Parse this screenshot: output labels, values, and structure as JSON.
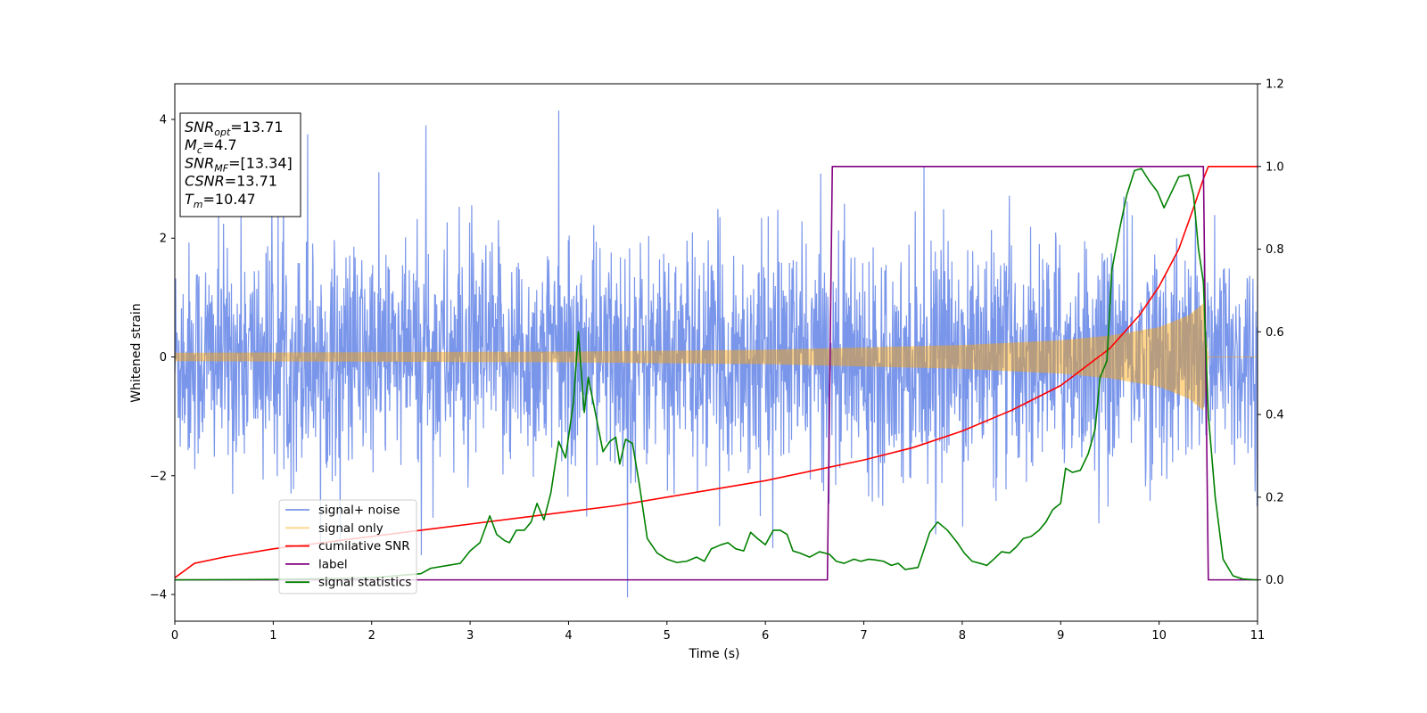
{
  "chart_data": {
    "type": "line",
    "xlabel": "Time (s)",
    "ylabel": "Whitened strain",
    "xlim": [
      0,
      11
    ],
    "ylim_left": [
      -4.45,
      4.6
    ],
    "ylim_right": [
      -0.1,
      1.2
    ],
    "x_ticks": [
      "0",
      "1",
      "2",
      "3",
      "4",
      "5",
      "6",
      "7",
      "8",
      "9",
      "10",
      "11"
    ],
    "y_left_ticks": [
      {
        "value": -4,
        "label": "−4"
      },
      {
        "value": -2,
        "label": "−2"
      },
      {
        "value": 0,
        "label": "0"
      },
      {
        "value": 2,
        "label": "2"
      },
      {
        "value": 4,
        "label": "4"
      }
    ],
    "y_right_ticks": [
      "0.0",
      "0.2",
      "0.4",
      "0.6",
      "0.8",
      "1.0",
      "1.2"
    ],
    "legend_position": "lower-left",
    "grid": false,
    "info_box": {
      "lines": [
        {
          "sym": "SNR",
          "sub": "opt",
          "value": "=13.71"
        },
        {
          "sym": "M",
          "sub": "c",
          "value": "=4.7"
        },
        {
          "sym": "SNR",
          "sub": "MF",
          "value": "=[13.34]"
        },
        {
          "sym": "CSNR",
          "sub": "",
          "value": "=13.71"
        },
        {
          "sym": "T",
          "sub": "m",
          "value": "=10.47"
        }
      ]
    },
    "series": [
      {
        "name": "signal+ noise",
        "axis": "left",
        "color": "#4169e1",
        "description": "whitened noisy strain, roughly |y| < 2.3 with spikes to ~4",
        "notable_peaks": [
          {
            "x": 3.9,
            "y": 4.15
          },
          {
            "x": 4.6,
            "y": -4.05
          },
          {
            "x": 2.55,
            "y": 3.9
          },
          {
            "x": 1.35,
            "y": 3.75
          }
        ],
        "approx_envelope": 2.3
      },
      {
        "name": "signal only",
        "axis": "left",
        "color": "#ffa500",
        "description": "chirp, amplitude growing until merger then zero",
        "envelope": [
          {
            "x": 0.0,
            "y": 0.07
          },
          {
            "x": 2.0,
            "y": 0.08
          },
          {
            "x": 4.0,
            "y": 0.09
          },
          {
            "x": 6.0,
            "y": 0.12
          },
          {
            "x": 8.0,
            "y": 0.2
          },
          {
            "x": 9.0,
            "y": 0.28
          },
          {
            "x": 9.5,
            "y": 0.36
          },
          {
            "x": 10.0,
            "y": 0.5
          },
          {
            "x": 10.3,
            "y": 0.7
          },
          {
            "x": 10.45,
            "y": 0.9
          },
          {
            "x": 10.5,
            "y": 0.0
          },
          {
            "x": 11.0,
            "y": 0.0
          }
        ]
      },
      {
        "name": "cumilative SNR",
        "axis": "right",
        "color": "#ff0000",
        "points": [
          {
            "x": 0.0,
            "y": 0.005
          },
          {
            "x": 0.2,
            "y": 0.04
          },
          {
            "x": 0.5,
            "y": 0.055
          },
          {
            "x": 1.0,
            "y": 0.075
          },
          {
            "x": 1.5,
            "y": 0.09
          },
          {
            "x": 2.0,
            "y": 0.105
          },
          {
            "x": 2.5,
            "y": 0.12
          },
          {
            "x": 3.0,
            "y": 0.135
          },
          {
            "x": 3.5,
            "y": 0.15
          },
          {
            "x": 4.0,
            "y": 0.165
          },
          {
            "x": 4.5,
            "y": 0.18
          },
          {
            "x": 5.0,
            "y": 0.2
          },
          {
            "x": 5.5,
            "y": 0.22
          },
          {
            "x": 6.0,
            "y": 0.24
          },
          {
            "x": 6.5,
            "y": 0.265
          },
          {
            "x": 7.0,
            "y": 0.29
          },
          {
            "x": 7.5,
            "y": 0.32
          },
          {
            "x": 8.0,
            "y": 0.36
          },
          {
            "x": 8.5,
            "y": 0.41
          },
          {
            "x": 9.0,
            "y": 0.47
          },
          {
            "x": 9.5,
            "y": 0.56
          },
          {
            "x": 9.8,
            "y": 0.64
          },
          {
            "x": 10.0,
            "y": 0.71
          },
          {
            "x": 10.2,
            "y": 0.8
          },
          {
            "x": 10.35,
            "y": 0.9
          },
          {
            "x": 10.45,
            "y": 0.97
          },
          {
            "x": 10.5,
            "y": 1.0
          },
          {
            "x": 11.0,
            "y": 1.0
          }
        ]
      },
      {
        "name": "label",
        "axis": "right",
        "color": "#800080",
        "points": [
          {
            "x": 0.0,
            "y": 0.0
          },
          {
            "x": 6.63,
            "y": 0.0
          },
          {
            "x": 6.68,
            "y": 1.0
          },
          {
            "x": 10.45,
            "y": 1.0
          },
          {
            "x": 10.5,
            "y": 0.0
          },
          {
            "x": 11.0,
            "y": 0.0
          }
        ]
      },
      {
        "name": "signal statistics",
        "axis": "right",
        "color": "#008000",
        "points": [
          {
            "x": 0.0,
            "y": 0.0
          },
          {
            "x": 1.0,
            "y": 0.001
          },
          {
            "x": 2.0,
            "y": 0.005
          },
          {
            "x": 2.5,
            "y": 0.015
          },
          {
            "x": 2.6,
            "y": 0.028
          },
          {
            "x": 2.8,
            "y": 0.036
          },
          {
            "x": 2.9,
            "y": 0.04
          },
          {
            "x": 3.0,
            "y": 0.07
          },
          {
            "x": 3.1,
            "y": 0.09
          },
          {
            "x": 3.2,
            "y": 0.155
          },
          {
            "x": 3.27,
            "y": 0.11
          },
          {
            "x": 3.35,
            "y": 0.095
          },
          {
            "x": 3.4,
            "y": 0.09
          },
          {
            "x": 3.47,
            "y": 0.12
          },
          {
            "x": 3.55,
            "y": 0.12
          },
          {
            "x": 3.62,
            "y": 0.14
          },
          {
            "x": 3.68,
            "y": 0.185
          },
          {
            "x": 3.75,
            "y": 0.145
          },
          {
            "x": 3.82,
            "y": 0.21
          },
          {
            "x": 3.9,
            "y": 0.335
          },
          {
            "x": 3.97,
            "y": 0.295
          },
          {
            "x": 4.05,
            "y": 0.43
          },
          {
            "x": 4.1,
            "y": 0.6
          },
          {
            "x": 4.16,
            "y": 0.405
          },
          {
            "x": 4.2,
            "y": 0.49
          },
          {
            "x": 4.28,
            "y": 0.395
          },
          {
            "x": 4.35,
            "y": 0.31
          },
          {
            "x": 4.42,
            "y": 0.335
          },
          {
            "x": 4.48,
            "y": 0.345
          },
          {
            "x": 4.52,
            "y": 0.28
          },
          {
            "x": 4.58,
            "y": 0.34
          },
          {
            "x": 4.65,
            "y": 0.33
          },
          {
            "x": 4.72,
            "y": 0.23
          },
          {
            "x": 4.8,
            "y": 0.1
          },
          {
            "x": 4.9,
            "y": 0.065
          },
          {
            "x": 5.0,
            "y": 0.05
          },
          {
            "x": 5.1,
            "y": 0.042
          },
          {
            "x": 5.2,
            "y": 0.045
          },
          {
            "x": 5.3,
            "y": 0.055
          },
          {
            "x": 5.38,
            "y": 0.045
          },
          {
            "x": 5.45,
            "y": 0.075
          },
          {
            "x": 5.55,
            "y": 0.085
          },
          {
            "x": 5.62,
            "y": 0.09
          },
          {
            "x": 5.7,
            "y": 0.075
          },
          {
            "x": 5.78,
            "y": 0.07
          },
          {
            "x": 5.85,
            "y": 0.115
          },
          {
            "x": 5.92,
            "y": 0.1
          },
          {
            "x": 6.0,
            "y": 0.085
          },
          {
            "x": 6.08,
            "y": 0.12
          },
          {
            "x": 6.15,
            "y": 0.12
          },
          {
            "x": 6.22,
            "y": 0.11
          },
          {
            "x": 6.28,
            "y": 0.07
          },
          {
            "x": 6.35,
            "y": 0.065
          },
          {
            "x": 6.45,
            "y": 0.055
          },
          {
            "x": 6.55,
            "y": 0.068
          },
          {
            "x": 6.65,
            "y": 0.062
          },
          {
            "x": 6.72,
            "y": 0.045
          },
          {
            "x": 6.8,
            "y": 0.04
          },
          {
            "x": 6.9,
            "y": 0.05
          },
          {
            "x": 6.97,
            "y": 0.045
          },
          {
            "x": 7.05,
            "y": 0.05
          },
          {
            "x": 7.12,
            "y": 0.048
          },
          {
            "x": 7.2,
            "y": 0.045
          },
          {
            "x": 7.28,
            "y": 0.035
          },
          {
            "x": 7.35,
            "y": 0.04
          },
          {
            "x": 7.42,
            "y": 0.025
          },
          {
            "x": 7.55,
            "y": 0.03
          },
          {
            "x": 7.6,
            "y": 0.065
          },
          {
            "x": 7.67,
            "y": 0.115
          },
          {
            "x": 7.75,
            "y": 0.14
          },
          {
            "x": 7.85,
            "y": 0.12
          },
          {
            "x": 7.95,
            "y": 0.09
          },
          {
            "x": 8.02,
            "y": 0.065
          },
          {
            "x": 8.1,
            "y": 0.045
          },
          {
            "x": 8.18,
            "y": 0.04
          },
          {
            "x": 8.25,
            "y": 0.035
          },
          {
            "x": 8.32,
            "y": 0.05
          },
          {
            "x": 8.4,
            "y": 0.068
          },
          {
            "x": 8.48,
            "y": 0.065
          },
          {
            "x": 8.55,
            "y": 0.08
          },
          {
            "x": 8.62,
            "y": 0.1
          },
          {
            "x": 8.7,
            "y": 0.105
          },
          {
            "x": 8.78,
            "y": 0.12
          },
          {
            "x": 8.85,
            "y": 0.14
          },
          {
            "x": 8.92,
            "y": 0.17
          },
          {
            "x": 9.0,
            "y": 0.185
          },
          {
            "x": 9.05,
            "y": 0.27
          },
          {
            "x": 9.12,
            "y": 0.26
          },
          {
            "x": 9.2,
            "y": 0.265
          },
          {
            "x": 9.28,
            "y": 0.305
          },
          {
            "x": 9.35,
            "y": 0.365
          },
          {
            "x": 9.4,
            "y": 0.49
          },
          {
            "x": 9.47,
            "y": 0.53
          },
          {
            "x": 9.52,
            "y": 0.75
          },
          {
            "x": 9.6,
            "y": 0.85
          },
          {
            "x": 9.67,
            "y": 0.93
          },
          {
            "x": 9.75,
            "y": 0.99
          },
          {
            "x": 9.82,
            "y": 0.995
          },
          {
            "x": 9.9,
            "y": 0.965
          },
          {
            "x": 9.98,
            "y": 0.94
          },
          {
            "x": 10.05,
            "y": 0.9
          },
          {
            "x": 10.12,
            "y": 0.935
          },
          {
            "x": 10.2,
            "y": 0.975
          },
          {
            "x": 10.3,
            "y": 0.98
          },
          {
            "x": 10.35,
            "y": 0.93
          },
          {
            "x": 10.4,
            "y": 0.8
          },
          {
            "x": 10.45,
            "y": 0.72
          },
          {
            "x": 10.5,
            "y": 0.4
          },
          {
            "x": 10.57,
            "y": 0.2
          },
          {
            "x": 10.65,
            "y": 0.05
          },
          {
            "x": 10.75,
            "y": 0.01
          },
          {
            "x": 10.85,
            "y": 0.002
          },
          {
            "x": 11.0,
            "y": 0.0
          }
        ]
      }
    ]
  }
}
